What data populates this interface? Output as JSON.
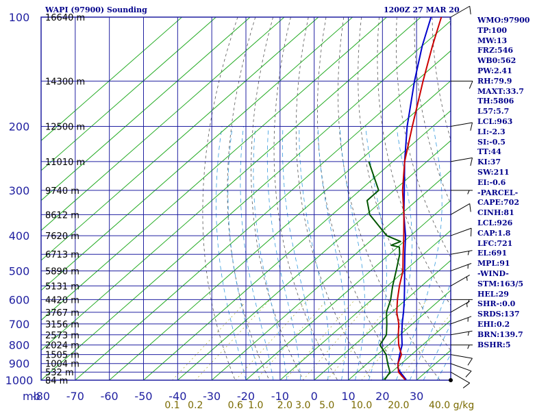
{
  "header": {
    "title_left": "WAPI (97900) Sounding",
    "title_right": "1200Z 27 MAR 20"
  },
  "colors": {
    "grid": "#1f1fa0",
    "text": "#00008b",
    "isotherm": "#22aa22",
    "dry_adiabat": "#555555",
    "moist_adiabat": "#3399dd",
    "mixing_ratio_label": "#7a6a00",
    "temperature": "#cc0000",
    "dewpoint": "#005500",
    "parcel": "#0000cc",
    "wind": "#000000"
  },
  "chart_data": {
    "type": "skew-t",
    "xlabel": "mb",
    "x_ticks": [
      -80,
      -70,
      -60,
      -50,
      -40,
      -30,
      -20,
      -10,
      0,
      10,
      20,
      30
    ],
    "x_range": [
      -80,
      40
    ],
    "y_pressure_range_mb": [
      100,
      1000
    ],
    "y_scale": "log",
    "pressure_ticks": [
      100,
      200,
      300,
      400,
      500,
      600,
      700,
      800,
      900,
      1000
    ],
    "height_labels": [
      {
        "p": 100,
        "label": "16640 m"
      },
      {
        "p": 150,
        "label": "14300 m"
      },
      {
        "p": 200,
        "label": "12500 m"
      },
      {
        "p": 250,
        "label": "11010 m"
      },
      {
        "p": 300,
        "label": "9740 m"
      },
      {
        "p": 350,
        "label": "8612 m"
      },
      {
        "p": 400,
        "label": "7620 m"
      },
      {
        "p": 450,
        "label": "6713 m"
      },
      {
        "p": 500,
        "label": "5890 m"
      },
      {
        "p": 550,
        "label": "5131 m"
      },
      {
        "p": 600,
        "label": "4420 m"
      },
      {
        "p": 650,
        "label": "3767 m"
      },
      {
        "p": 700,
        "label": "3156 m"
      },
      {
        "p": 750,
        "label": "2573 m"
      },
      {
        "p": 800,
        "label": "2024 m"
      },
      {
        "p": 850,
        "label": "1505 m"
      },
      {
        "p": 900,
        "label": "1004 m"
      },
      {
        "p": 950,
        "label": "532 m"
      },
      {
        "p": 1000,
        "label": "84 m"
      }
    ],
    "mixing_ratio_labels": [
      {
        "w": 0.1,
        "label": "0.1"
      },
      {
        "w": 0.2,
        "label": "0.2"
      },
      {
        "w": 0.6,
        "label": "0.6"
      },
      {
        "w": 1.0,
        "label": "1.0"
      },
      {
        "w": 2.0,
        "label": "2.0"
      },
      {
        "w": 3.0,
        "label": "3.0"
      },
      {
        "w": 5.0,
        "label": "5.0"
      },
      {
        "w": 10.0,
        "label": "10.0"
      },
      {
        "w": 20.0,
        "label": "20.0"
      }
    ],
    "mixing_ratio_unit": "g/kg",
    "mixing_ratio_suffix_label": "40.0",
    "temperature_profile": [
      {
        "p": 997,
        "t": 26.5
      },
      {
        "p": 950,
        "t": 22.0
      },
      {
        "p": 900,
        "t": 19.0
      },
      {
        "p": 850,
        "t": 17.0
      },
      {
        "p": 800,
        "t": 13.0
      },
      {
        "p": 750,
        "t": 9.5
      },
      {
        "p": 700,
        "t": 6.0
      },
      {
        "p": 650,
        "t": 1.5
      },
      {
        "p": 600,
        "t": -2.5
      },
      {
        "p": 550,
        "t": -6.5
      },
      {
        "p": 500,
        "t": -10.5
      },
      {
        "p": 450,
        "t": -16.0
      },
      {
        "p": 400,
        "t": -22.0
      },
      {
        "p": 350,
        "t": -29.0
      },
      {
        "p": 300,
        "t": -37.5
      },
      {
        "p": 250,
        "t": -46.5
      },
      {
        "p": 200,
        "t": -56.0
      },
      {
        "p": 150,
        "t": -68.0
      },
      {
        "p": 120,
        "t": -77.0
      },
      {
        "p": 100,
        "t": -84.0
      }
    ],
    "dewpoint_profile": [
      {
        "p": 997,
        "t": 20.5
      },
      {
        "p": 950,
        "t": 19.5
      },
      {
        "p": 900,
        "t": 16.0
      },
      {
        "p": 850,
        "t": 12.5
      },
      {
        "p": 800,
        "t": 7.5
      },
      {
        "p": 750,
        "t": 6.0
      },
      {
        "p": 700,
        "t": 2.5
      },
      {
        "p": 650,
        "t": -1.5
      },
      {
        "p": 600,
        "t": -4.5
      },
      {
        "p": 550,
        "t": -8.5
      },
      {
        "p": 500,
        "t": -12.5
      },
      {
        "p": 450,
        "t": -17.0
      },
      {
        "p": 430,
        "t": -19.5
      },
      {
        "p": 425,
        "t": -22.5
      },
      {
        "p": 415,
        "t": -21.0
      },
      {
        "p": 400,
        "t": -27.0
      },
      {
        "p": 350,
        "t": -39.0
      },
      {
        "p": 320,
        "t": -44.5
      },
      {
        "p": 300,
        "t": -44.5
      },
      {
        "p": 250,
        "t": -57.0
      }
    ],
    "parcel_profile": [
      {
        "p": 997,
        "t": 26.8
      },
      {
        "p": 950,
        "t": 22.5
      },
      {
        "p": 926,
        "t": 20.5
      },
      {
        "p": 900,
        "t": 19.0
      },
      {
        "p": 850,
        "t": 16.5
      },
      {
        "p": 800,
        "t": 14.0
      },
      {
        "p": 750,
        "t": 10.5
      },
      {
        "p": 700,
        "t": 7.0
      },
      {
        "p": 650,
        "t": 3.5
      },
      {
        "p": 600,
        "t": -0.5
      },
      {
        "p": 550,
        "t": -5.0
      },
      {
        "p": 500,
        "t": -10.0
      },
      {
        "p": 450,
        "t": -15.5
      },
      {
        "p": 400,
        "t": -21.5
      },
      {
        "p": 350,
        "t": -29.0
      },
      {
        "p": 300,
        "t": -37.0
      },
      {
        "p": 250,
        "t": -46.5
      },
      {
        "p": 200,
        "t": -57.5
      },
      {
        "p": 150,
        "t": -70.5
      },
      {
        "p": 120,
        "t": -80.0
      },
      {
        "p": 100,
        "t": -87.0
      }
    ],
    "wind_barbs": [
      {
        "p": 1000,
        "dir": 90,
        "spd": 0
      },
      {
        "p": 950,
        "dir": 120,
        "spd": 10
      },
      {
        "p": 900,
        "dir": 110,
        "spd": 10
      },
      {
        "p": 850,
        "dir": 100,
        "spd": 10
      },
      {
        "p": 800,
        "dir": 90,
        "spd": 5
      },
      {
        "p": 750,
        "dir": 80,
        "spd": 5
      },
      {
        "p": 700,
        "dir": 70,
        "spd": 5
      },
      {
        "p": 650,
        "dir": 60,
        "spd": 5
      },
      {
        "p": 600,
        "dir": 90,
        "spd": 5
      },
      {
        "p": 550,
        "dir": 60,
        "spd": 5
      },
      {
        "p": 500,
        "dir": 70,
        "spd": 5
      },
      {
        "p": 450,
        "dir": 80,
        "spd": 5
      },
      {
        "p": 400,
        "dir": 70,
        "spd": 10
      },
      {
        "p": 350,
        "dir": 60,
        "spd": 10
      },
      {
        "p": 300,
        "dir": 90,
        "spd": 5
      },
      {
        "p": 250,
        "dir": 80,
        "spd": 10
      },
      {
        "p": 200,
        "dir": 80,
        "spd": 10
      },
      {
        "p": 150,
        "dir": 90,
        "spd": 10
      },
      {
        "p": 100,
        "dir": 60,
        "spd": 10
      }
    ]
  },
  "indices": [
    "WMO:97900",
    "TP:100",
    "MW:13",
    "FRZ:546",
    "WB0:562",
    "PW:2.41",
    "RH:79.9",
    "MAXT:33.7",
    "TH:5806",
    "L57:5.7",
    "LCL:963",
    "LI:-2.3",
    "SI:-0.5",
    "TT:44",
    "KI:37",
    "SW:211",
    "EI:-0.6",
    "-PARCEL-",
    "CAPE:702",
    "CINH:81",
    "LCL:926",
    "CAP:1.8",
    "LFC:721",
    "EL:691",
    "MPL:91",
    "-WIND-",
    "STM:163/5",
    "HEL:29",
    "SHR-:0.0",
    "SRDS:137",
    "EHI:0.2",
    "BRN:139.7",
    "BSHR:5"
  ]
}
